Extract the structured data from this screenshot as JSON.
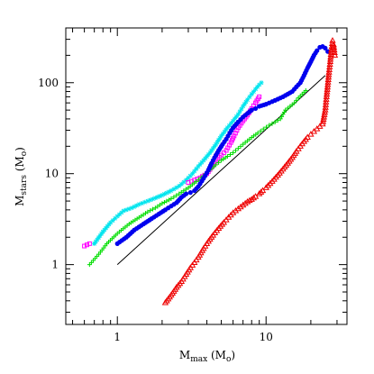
{
  "chart_data": {
    "type": "scatter",
    "title": "",
    "xlabel": {
      "main": "M",
      "sub": "max",
      "unit_open": " (M",
      "unit_sub": "o",
      "unit_close": ")"
    },
    "ylabel": {
      "main": "M",
      "sub": "stars",
      "unit_open": " (M",
      "unit_sub": "o",
      "unit_close": ")"
    },
    "xscale": "log",
    "yscale": "log",
    "xlim": [
      0.45,
      35
    ],
    "ylim": [
      0.22,
      400
    ],
    "xticks": [
      {
        "value": 1,
        "label": "1"
      },
      {
        "value": 10,
        "label": "10"
      }
    ],
    "yticks": [
      {
        "value": 1,
        "label": "1"
      },
      {
        "value": 10,
        "label": "10"
      },
      {
        "value": 100,
        "label": "100"
      }
    ],
    "grid": false,
    "legend": "none",
    "reference_line": {
      "style": "solid",
      "color": "#000000",
      "points": [
        [
          1,
          1
        ],
        [
          25,
          120
        ]
      ]
    },
    "series": [
      {
        "color": "#00e5ee",
        "marker": "star",
        "points": [
          [
            0.7,
            1.7
          ],
          [
            0.8,
            2.3
          ],
          [
            0.9,
            2.9
          ],
          [
            1.0,
            3.4
          ],
          [
            1.1,
            3.9
          ],
          [
            1.25,
            4.2
          ],
          [
            1.4,
            4.6
          ],
          [
            1.6,
            5.0
          ],
          [
            1.8,
            5.4
          ],
          [
            2.0,
            5.8
          ],
          [
            2.3,
            6.5
          ],
          [
            2.6,
            7.3
          ],
          [
            2.9,
            8.5
          ],
          [
            3.2,
            10
          ],
          [
            3.5,
            12
          ],
          [
            3.8,
            14
          ],
          [
            4.2,
            17
          ],
          [
            4.6,
            21
          ],
          [
            5.0,
            26
          ],
          [
            5.5,
            32
          ],
          [
            6.0,
            38
          ],
          [
            6.5,
            45
          ],
          [
            7.0,
            55
          ],
          [
            7.5,
            65
          ],
          [
            8.0,
            75
          ],
          [
            8.5,
            85
          ],
          [
            9.0,
            95
          ],
          [
            9.3,
            100
          ]
        ]
      },
      {
        "color": "#ff00ff",
        "marker": "square",
        "points": [
          [
            0.6,
            1.6
          ],
          [
            0.65,
            1.7
          ],
          [
            3.0,
            8
          ],
          [
            3.3,
            8.5
          ],
          [
            3.6,
            9
          ],
          [
            4.0,
            10
          ],
          [
            4.5,
            13
          ],
          [
            5.0,
            16
          ],
          [
            5.4,
            18
          ],
          [
            5.8,
            22
          ],
          [
            6.1,
            26
          ],
          [
            6.5,
            32
          ],
          [
            7.0,
            38
          ],
          [
            7.5,
            44
          ],
          [
            8.0,
            52
          ],
          [
            8.5,
            60
          ],
          [
            9.0,
            70
          ]
        ]
      },
      {
        "color": "#00dd00",
        "marker": "plus",
        "points": [
          [
            0.65,
            1.0
          ],
          [
            0.75,
            1.3
          ],
          [
            0.85,
            1.7
          ],
          [
            1.0,
            2.2
          ],
          [
            1.2,
            2.8
          ],
          [
            1.4,
            3.3
          ],
          [
            1.6,
            3.8
          ],
          [
            1.8,
            4.2
          ],
          [
            2.0,
            4.7
          ],
          [
            2.3,
            5.3
          ],
          [
            2.6,
            6.0
          ],
          [
            3.0,
            7.0
          ],
          [
            3.4,
            8.2
          ],
          [
            3.8,
            9.5
          ],
          [
            4.2,
            11
          ],
          [
            4.6,
            12.5
          ],
          [
            5.0,
            14
          ],
          [
            5.5,
            15.5
          ],
          [
            6.0,
            17
          ],
          [
            6.5,
            19
          ],
          [
            7.0,
            21
          ],
          [
            7.5,
            23
          ],
          [
            8.0,
            25
          ],
          [
            8.8,
            28
          ],
          [
            9.6,
            31
          ],
          [
            10.5,
            34
          ],
          [
            11.5,
            37
          ],
          [
            12.5,
            40
          ],
          [
            13.0,
            45
          ],
          [
            13.5,
            50
          ],
          [
            14.5,
            55
          ],
          [
            15.5,
            60
          ],
          [
            16.5,
            68
          ],
          [
            17.5,
            75
          ],
          [
            18.5,
            82
          ]
        ]
      },
      {
        "color": "#0000ee",
        "marker": "circle",
        "points": [
          [
            1.0,
            1.7
          ],
          [
            1.15,
            2.0
          ],
          [
            1.3,
            2.4
          ],
          [
            1.5,
            2.8
          ],
          [
            1.7,
            3.2
          ],
          [
            1.9,
            3.6
          ],
          [
            2.1,
            4.0
          ],
          [
            2.3,
            4.4
          ],
          [
            2.5,
            4.8
          ],
          [
            2.7,
            5.5
          ],
          [
            2.9,
            6.0
          ],
          [
            3.1,
            6.2
          ],
          [
            3.3,
            6.5
          ],
          [
            3.5,
            7.2
          ],
          [
            3.7,
            8.3
          ],
          [
            3.9,
            9.5
          ],
          [
            4.1,
            11
          ],
          [
            4.3,
            13
          ],
          [
            4.5,
            15
          ],
          [
            4.8,
            18
          ],
          [
            5.1,
            21
          ],
          [
            5.4,
            24
          ],
          [
            5.7,
            28
          ],
          [
            6.0,
            32
          ],
          [
            6.5,
            37
          ],
          [
            7.0,
            42
          ],
          [
            7.5,
            46
          ],
          [
            8.0,
            50
          ],
          [
            8.5,
            52
          ],
          [
            9.0,
            55
          ],
          [
            10,
            58
          ],
          [
            11,
            62
          ],
          [
            12,
            66
          ],
          [
            13,
            70
          ],
          [
            14,
            75
          ],
          [
            15,
            80
          ],
          [
            16,
            90
          ],
          [
            17,
            100
          ],
          [
            18,
            120
          ],
          [
            19,
            145
          ],
          [
            20,
            170
          ],
          [
            21,
            200
          ],
          [
            22,
            225
          ],
          [
            23,
            245
          ],
          [
            24,
            250
          ],
          [
            25,
            240
          ],
          [
            26,
            220
          ]
        ]
      },
      {
        "color": "#ee0000",
        "marker": "triangle",
        "points": [
          [
            2.1,
            0.38
          ],
          [
            2.3,
            0.46
          ],
          [
            2.5,
            0.56
          ],
          [
            2.7,
            0.65
          ],
          [
            2.9,
            0.78
          ],
          [
            3.1,
            0.92
          ],
          [
            3.3,
            1.05
          ],
          [
            3.5,
            1.2
          ],
          [
            3.8,
            1.5
          ],
          [
            4.1,
            1.8
          ],
          [
            4.4,
            2.1
          ],
          [
            4.8,
            2.5
          ],
          [
            5.2,
            2.9
          ],
          [
            5.6,
            3.3
          ],
          [
            6.0,
            3.7
          ],
          [
            6.5,
            4.1
          ],
          [
            7.0,
            4.5
          ],
          [
            7.5,
            4.9
          ],
          [
            8.0,
            5.2
          ],
          [
            8.5,
            5.6
          ],
          [
            9.0,
            6.0
          ],
          [
            9.5,
            6.5
          ],
          [
            10,
            7.0
          ],
          [
            11,
            8.2
          ],
          [
            12,
            9.6
          ],
          [
            13,
            11.2
          ],
          [
            14,
            13
          ],
          [
            15,
            15
          ],
          [
            16,
            17.5
          ],
          [
            17,
            20
          ],
          [
            18,
            22.5
          ],
          [
            19,
            25
          ],
          [
            20,
            27
          ],
          [
            21,
            29
          ],
          [
            22,
            31
          ],
          [
            23,
            33
          ],
          [
            24,
            35
          ],
          [
            25,
            50
          ],
          [
            25.5,
            70
          ],
          [
            26,
            95
          ],
          [
            26.5,
            130
          ],
          [
            27,
            170
          ],
          [
            27.5,
            230
          ],
          [
            28,
            290
          ],
          [
            28.5,
            260
          ],
          [
            29,
            200
          ]
        ]
      }
    ]
  }
}
